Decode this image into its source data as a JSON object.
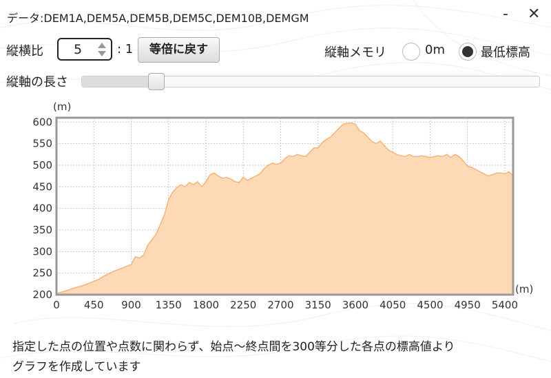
{
  "title": "データ:DEM1A,DEM5A,DEM5B,DEM5C,DEM10B,DEMGM",
  "window_controls": {
    "minimize": "-",
    "close": "✕"
  },
  "ratio": {
    "label": "縦横比",
    "value": "5",
    "suffix": ": 1",
    "reset_label": "等倍に戻す"
  },
  "axis_memory": {
    "label": "縦軸メモリ",
    "options": [
      {
        "label": "0m",
        "selected": false
      },
      {
        "label": "最低標高",
        "selected": true
      }
    ]
  },
  "axis_length": {
    "label": "縦軸の長さ",
    "level": 0.15
  },
  "footer": {
    "line1": "指定した点の位置や点数に関わらず、始点～終点間を300等分した各点の標高値より",
    "line2": "グラフを作成しています"
  },
  "colors": {
    "fill": "#fdd9b5",
    "line": "#f5b37b",
    "frame": "#999999"
  },
  "chart_data": {
    "type": "area",
    "title": "",
    "xlabel": "(m)",
    "ylabel": "(m)",
    "xlim": [
      0,
      5500
    ],
    "ylim": [
      200,
      610
    ],
    "grid": true,
    "x_ticks": [
      0,
      450,
      900,
      1350,
      1800,
      2250,
      2700,
      3150,
      3600,
      4050,
      4500,
      4950,
      5400
    ],
    "y_ticks": [
      200,
      250,
      300,
      350,
      400,
      450,
      500,
      550,
      600
    ],
    "series": [
      {
        "x": [
          0,
          100,
          200,
          300,
          400,
          500,
          600,
          700,
          800,
          900,
          950,
          1000,
          1050,
          1100,
          1200,
          1300,
          1350,
          1400,
          1450,
          1500,
          1550,
          1600,
          1650,
          1700,
          1750,
          1800,
          1850,
          1900,
          1950,
          2000,
          2050,
          2100,
          2150,
          2200,
          2250,
          2300,
          2350,
          2400,
          2450,
          2500,
          2550,
          2600,
          2650,
          2700,
          2750,
          2800,
          2850,
          2900,
          2950,
          3000,
          3050,
          3100,
          3150,
          3200,
          3250,
          3300,
          3350,
          3400,
          3450,
          3500,
          3550,
          3600,
          3650,
          3700,
          3750,
          3800,
          3850,
          3900,
          3950,
          4000,
          4050,
          4100,
          4150,
          4200,
          4250,
          4300,
          4350,
          4400,
          4450,
          4500,
          4550,
          4600,
          4650,
          4700,
          4750,
          4800,
          4850,
          4900,
          4950,
          5000,
          5050,
          5100,
          5150,
          5200,
          5250,
          5300,
          5350,
          5400,
          5450,
          5500
        ],
        "y": [
          203,
          208,
          215,
          220,
          227,
          235,
          246,
          255,
          262,
          270,
          288,
          285,
          292,
          315,
          340,
          385,
          420,
          438,
          448,
          455,
          450,
          460,
          455,
          462,
          450,
          462,
          478,
          482,
          475,
          470,
          472,
          468,
          462,
          460,
          472,
          465,
          470,
          475,
          480,
          492,
          500,
          505,
          502,
          505,
          515,
          522,
          520,
          525,
          522,
          520,
          530,
          540,
          540,
          552,
          560,
          565,
          575,
          585,
          595,
          597,
          598,
          595,
          580,
          575,
          565,
          555,
          550,
          556,
          545,
          535,
          530,
          525,
          522,
          520,
          525,
          520,
          520,
          522,
          520,
          518,
          520,
          522,
          520,
          525,
          518,
          525,
          520,
          510,
          498,
          495,
          490,
          485,
          480,
          475,
          478,
          482,
          482,
          480,
          485,
          475
        ]
      }
    ]
  }
}
